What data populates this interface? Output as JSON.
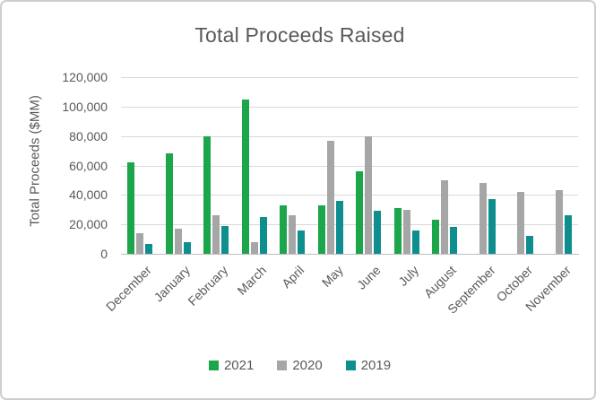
{
  "window": {
    "background": "#ffffff",
    "border_color": "#cfcdcd"
  },
  "chart_data": {
    "type": "bar",
    "title": "Total Proceeds Raised",
    "xlabel": "",
    "ylabel": "Total Proceeds ($MM)",
    "ylim": [
      0,
      120000
    ],
    "ytick_interval": 20000,
    "ytick_labels": [
      "120,000",
      "100,000",
      "80,000",
      "60,000",
      "40,000",
      "20,000",
      "0"
    ],
    "grid": true,
    "legend_position": "bottom",
    "text_color": "#595959",
    "gridline_color": "#d9d9d9",
    "axis_line_color": "#bfbfbf",
    "categories": [
      "December",
      "January",
      "February",
      "March",
      "April",
      "May",
      "June",
      "July",
      "August",
      "September",
      "October",
      "November"
    ],
    "series": [
      {
        "name": "2021",
        "color": "#1CA64A",
        "values": [
          62000,
          68000,
          80000,
          105000,
          33000,
          33000,
          56000,
          31000,
          23000,
          0,
          0,
          0
        ]
      },
      {
        "name": "2020",
        "color": "#A6A6A6",
        "values": [
          14000,
          17000,
          26000,
          8000,
          26000,
          77000,
          80000,
          30000,
          50000,
          48000,
          42000,
          43000
        ]
      },
      {
        "name": "2019",
        "color": "#0E8E8E",
        "values": [
          7000,
          8000,
          19000,
          25000,
          16000,
          36000,
          29000,
          16000,
          18000,
          37000,
          12000,
          26000
        ]
      }
    ]
  }
}
